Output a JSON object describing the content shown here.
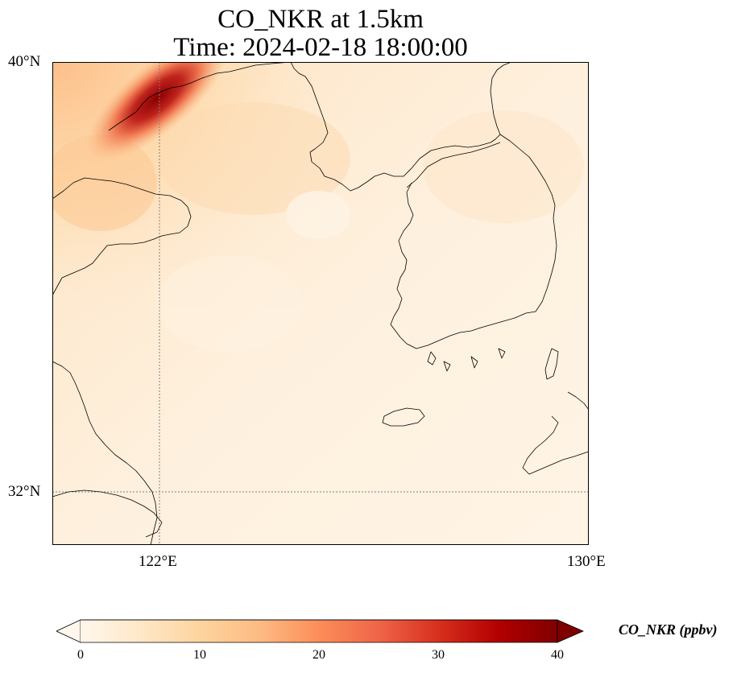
{
  "title": {
    "line1": "CO_NKR at 1.5km",
    "line2": "Time: 2024-02-18 18:00:00"
  },
  "map": {
    "variable": "CO_NKR",
    "level": "1.5km",
    "time": "2024-02-18 18:00:00",
    "extent": {
      "lon_min": 120,
      "lon_max": 130,
      "lat_min": 31,
      "lat_max": 40
    },
    "gridlines": {
      "lon": [
        122,
        130
      ],
      "lat": [
        32,
        40
      ],
      "style": "dotted",
      "color": "#808080"
    },
    "lat_tick_labels": [
      "40°N",
      "32°N"
    ],
    "lon_tick_labels": [
      "122°E",
      "130°E"
    ],
    "field_description": "concentration field; highest values near the northwest corner, low elsewhere",
    "max_region_value": 40
  },
  "colorbar": {
    "label": "CO_NKR (ppbv)",
    "colormap": "OrRd",
    "min": 0,
    "max": 40,
    "ticks": [
      "0",
      "10",
      "20",
      "30",
      "40"
    ],
    "extend": "both",
    "colors": [
      "#fff7ec",
      "#fee8c8",
      "#fdd49e",
      "#fdbb84",
      "#fc8d59",
      "#ef6548",
      "#d7301f",
      "#b30000",
      "#7f0000"
    ]
  }
}
